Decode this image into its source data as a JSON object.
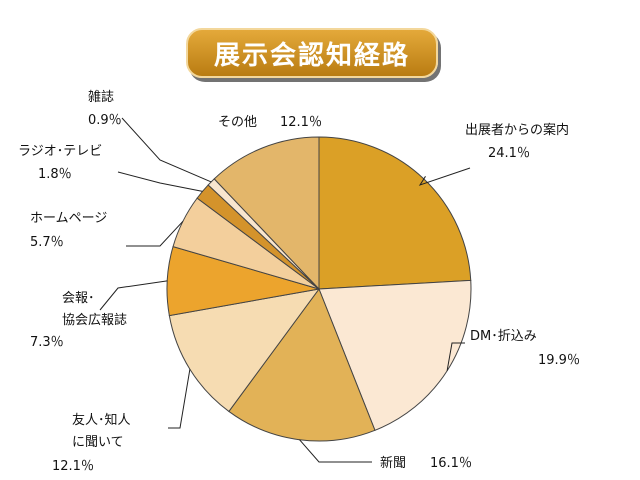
{
  "header": {
    "title": "展示会認知経路"
  },
  "chart_data": {
    "type": "pie",
    "title": "展示会認知経路",
    "start_angle_deg": 0,
    "direction": "clockwise",
    "slices": [
      {
        "label": "出展者からの案内",
        "value": 24.1,
        "value_label": "24.1％",
        "color": "#dba026"
      },
      {
        "label": "DM･折込み",
        "value": 19.9,
        "value_label": "19.9％",
        "color": "#fbe8d3"
      },
      {
        "label": "新聞",
        "value": 16.1,
        "value_label": "16.1％",
        "color": "#e2b257"
      },
      {
        "label": "友人･知人に聞いて",
        "value": 12.1,
        "value_label": "12.1％",
        "color": "#f6dcb2"
      },
      {
        "label": "会報･協会広報誌",
        "value": 7.3,
        "value_label": "7.3％",
        "color": "#eca42d"
      },
      {
        "label": "ホームページ",
        "value": 5.7,
        "value_label": "5.7％",
        "color": "#f3cf9c"
      },
      {
        "label": "ラジオ･テレビ",
        "value": 1.8,
        "value_label": "1.8％",
        "color": "#d4932b"
      },
      {
        "label": "雑誌",
        "value": 0.9,
        "value_label": "0.9％",
        "color": "#f9e6cf"
      },
      {
        "label": "その他",
        "value": 12.1,
        "value_label": "12.1％",
        "color": "#e3b66a"
      }
    ]
  }
}
